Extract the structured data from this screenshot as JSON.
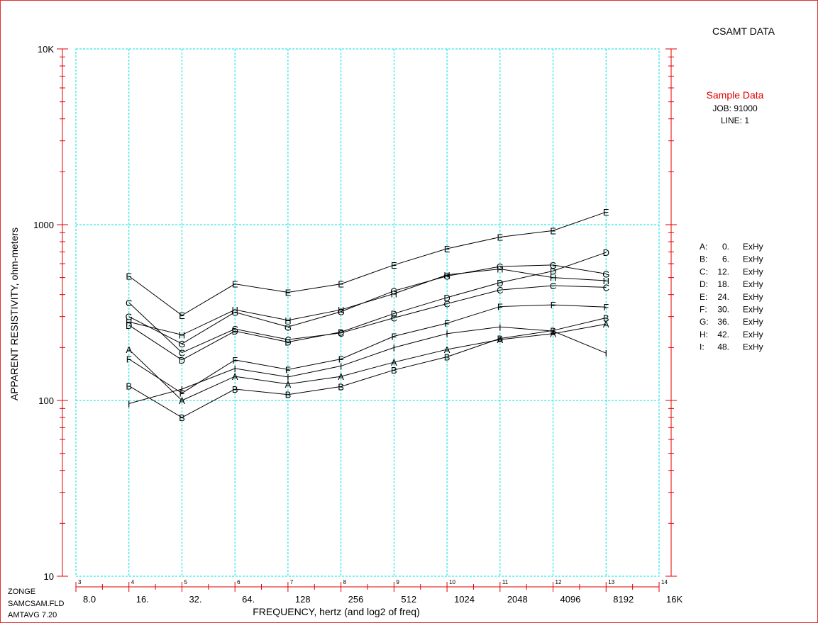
{
  "header": {
    "title": "CSAMT DATA",
    "sample": "Sample Data",
    "job": "JOB: 91000",
    "line": "LINE: 1"
  },
  "footer": {
    "line1": "ZONGE",
    "line2": "SAMCSAM.FLD",
    "line3": "AMTAVG 7.20"
  },
  "colors": {
    "frame": "#e03030",
    "axis": "#e00000",
    "grid": "#00e0e0",
    "series": "#000000"
  },
  "legend": [
    {
      "letter": "A:",
      "num": "0.",
      "comp": "ExHy"
    },
    {
      "letter": "B:",
      "num": "6.",
      "comp": "ExHy"
    },
    {
      "letter": "C:",
      "num": "12.",
      "comp": "ExHy"
    },
    {
      "letter": "D:",
      "num": "18.",
      "comp": "ExHy"
    },
    {
      "letter": "E:",
      "num": "24.",
      "comp": "ExHy"
    },
    {
      "letter": "F:",
      "num": "30.",
      "comp": "ExHy"
    },
    {
      "letter": "G:",
      "num": "36.",
      "comp": "ExHy"
    },
    {
      "letter": "H:",
      "num": "42.",
      "comp": "ExHy"
    },
    {
      "letter": "I:",
      "num": "48.",
      "comp": "ExHy"
    }
  ],
  "chart_data": {
    "type": "line",
    "xlabel": "FREQUENCY, hertz (and log2 of freq)",
    "ylabel": "APPARENT RESISTIVITY, ohm-meters",
    "x_scale": "log2",
    "y_scale": "log10",
    "xlim_log2": [
      3,
      14
    ],
    "ylim": [
      10,
      10000
    ],
    "grid": true,
    "y_ticks": [
      {
        "value": 10,
        "label": "10"
      },
      {
        "value": 100,
        "label": "100"
      },
      {
        "value": 1000,
        "label": "1000"
      },
      {
        "value": 10000,
        "label": "10K"
      }
    ],
    "x_ticks": [
      {
        "log2": 3,
        "freq_label": "8.0",
        "log2_label": "3"
      },
      {
        "log2": 4,
        "freq_label": "16.",
        "log2_label": "4"
      },
      {
        "log2": 5,
        "freq_label": "32.",
        "log2_label": "5"
      },
      {
        "log2": 6,
        "freq_label": "64.",
        "log2_label": "6"
      },
      {
        "log2": 7,
        "freq_label": "128",
        "log2_label": "7"
      },
      {
        "log2": 8,
        "freq_label": "256",
        "log2_label": "8"
      },
      {
        "log2": 9,
        "freq_label": "512",
        "log2_label": "9"
      },
      {
        "log2": 10,
        "freq_label": "1024",
        "log2_label": "10"
      },
      {
        "log2": 11,
        "freq_label": "2048",
        "log2_label": "11"
      },
      {
        "log2": 12,
        "freq_label": "4096",
        "log2_label": "12"
      },
      {
        "log2": 13,
        "freq_label": "8192",
        "log2_label": "13"
      },
      {
        "log2": 14,
        "freq_label": "16K",
        "log2_label": "14"
      }
    ],
    "x": [
      16,
      32,
      64,
      128,
      256,
      512,
      1024,
      2048,
      4096,
      8192
    ],
    "series": [
      {
        "name": "A",
        "values": [
          195,
          100,
          137,
          124,
          137,
          165,
          195,
          222,
          240,
          272
        ]
      },
      {
        "name": "B",
        "values": [
          121,
          80,
          116,
          108,
          120,
          149,
          177,
          225,
          250,
          295
        ]
      },
      {
        "name": "C",
        "values": [
          360,
          187,
          255,
          222,
          242,
          295,
          355,
          425,
          450,
          440
        ]
      },
      {
        "name": "D",
        "values": [
          268,
          170,
          248,
          215,
          245,
          312,
          385,
          468,
          545,
          695
        ]
      },
      {
        "name": "E",
        "values": [
          510,
          305,
          460,
          412,
          460,
          590,
          730,
          850,
          925,
          1180
        ]
      },
      {
        "name": "F",
        "values": [
          172,
          110,
          170,
          150,
          172,
          232,
          275,
          342,
          350,
          340
        ]
      },
      {
        "name": "G",
        "values": [
          300,
          210,
          318,
          262,
          320,
          420,
          510,
          578,
          590,
          525
        ]
      },
      {
        "name": "H",
        "values": [
          280,
          236,
          328,
          286,
          328,
          405,
          518,
          560,
          500,
          480
        ]
      },
      {
        "name": "I",
        "values": [
          96,
          116,
          152,
          136,
          157,
          200,
          240,
          262,
          248,
          186
        ]
      }
    ]
  }
}
